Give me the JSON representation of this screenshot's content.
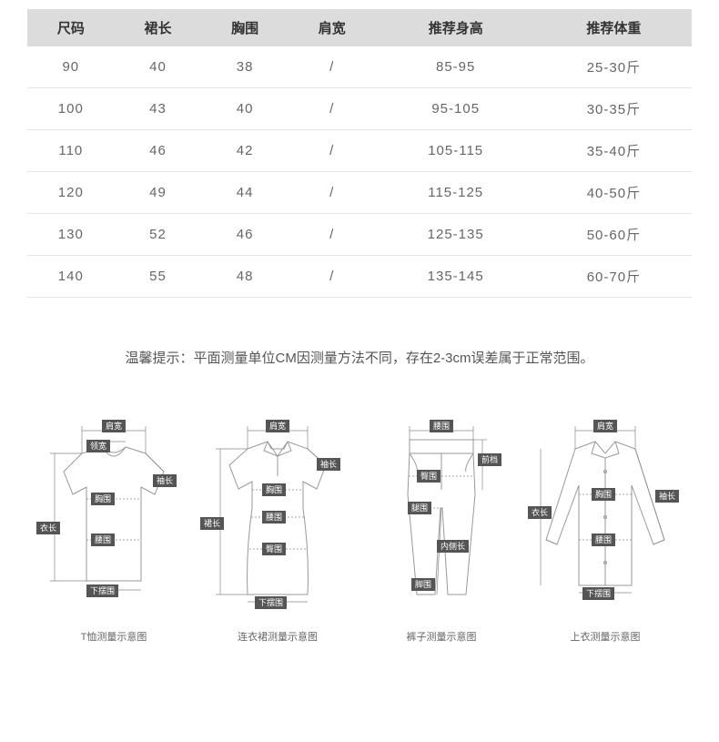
{
  "table": {
    "header_bg": "#dcdcdc",
    "header_color": "#333333",
    "cell_color": "#666666",
    "border_color": "#e5e5e5",
    "columns": [
      "尺码",
      "裙长",
      "胸围",
      "肩宽",
      "推荐身高",
      "推荐体重"
    ],
    "rows": [
      [
        "90",
        "40",
        "38",
        "/",
        "85-95",
        "25-30斤"
      ],
      [
        "100",
        "43",
        "40",
        "/",
        "95-105",
        "30-35斤"
      ],
      [
        "110",
        "46",
        "42",
        "/",
        "105-115",
        "35-40斤"
      ],
      [
        "120",
        "49",
        "44",
        "/",
        "115-125",
        "40-50斤"
      ],
      [
        "130",
        "52",
        "46",
        "/",
        "125-135",
        "50-60斤"
      ],
      [
        "140",
        "55",
        "48",
        "/",
        "135-145",
        "60-70斤"
      ]
    ]
  },
  "hint_text": "温馨提示：平面测量单位CM因测量方法不同，存在2-3cm误差属于正常范围。",
  "diagrams": {
    "label_bg": "#555555",
    "label_color": "#ffffff",
    "line_color": "#999999",
    "items": [
      {
        "caption": "T恤测量示意图",
        "labels": {
          "shoulder": "肩宽",
          "collar": "领宽",
          "sleeve": "袖长",
          "chest": "胸围",
          "length": "衣长",
          "waist": "腰围",
          "hem": "下摆围"
        }
      },
      {
        "caption": "连衣裙测量示意图",
        "labels": {
          "shoulder": "肩宽",
          "sleeve": "袖长",
          "chest": "胸围",
          "length": "裙长",
          "waist": "腰围",
          "hip": "臀围",
          "hem": "下摆围"
        }
      },
      {
        "caption": "裤子测量示意图",
        "labels": {
          "waist": "腰围",
          "front": "前档",
          "hip": "臀围",
          "thigh": "腿围",
          "inseam": "内侧长",
          "ankle": "脚围"
        }
      },
      {
        "caption": "上衣测量示意图",
        "labels": {
          "shoulder": "肩宽",
          "sleeve": "袖长",
          "chest": "胸围",
          "length": "衣长",
          "waist": "腰围",
          "hem": "下摆围"
        }
      }
    ]
  }
}
